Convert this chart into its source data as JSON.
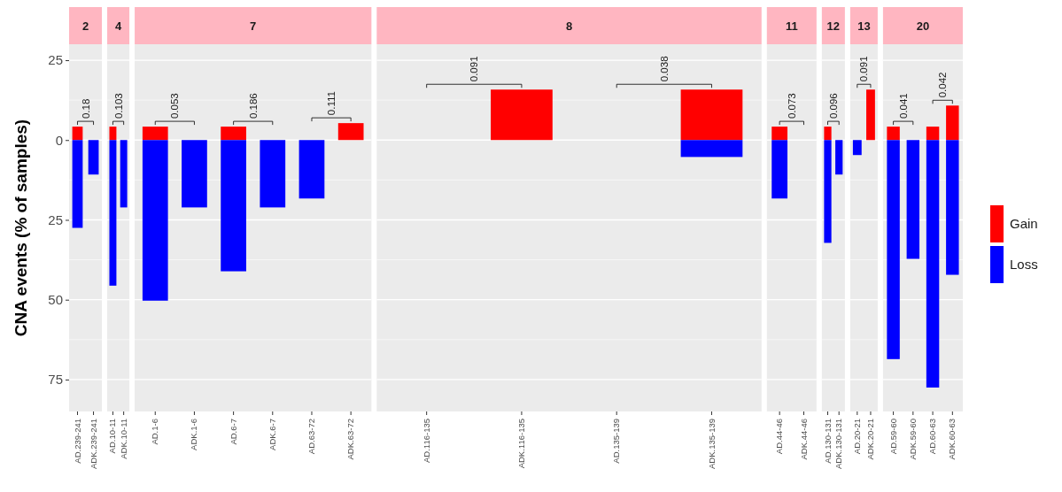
{
  "chart_data": [
    {
      "type": "bar",
      "stacked": true,
      "title": "2",
      "ylabel": "CNA events (% of samples)",
      "categories": [
        "AD.239-241",
        "ADK.239-241"
      ],
      "series": [
        {
          "color": "#ff0000",
          "values": [
            4.2,
            null
          ]
        },
        {
          "color": "#0000ff",
          "values": [
            -27.5,
            -10.8
          ]
        }
      ],
      "ylim": [
        -85,
        30
      ],
      "yticks": [
        {
          "value": -75,
          "label": "75"
        },
        {
          "value": -50,
          "label": "50"
        },
        {
          "value": -25,
          "label": "25"
        },
        0,
        25
      ],
      "grid": true,
      "annotations": [
        "0.18"
      ]
    },
    {
      "type": "bar",
      "stacked": true,
      "title": "4",
      "categories": [
        "AD.10-11",
        "ADK.10-11"
      ],
      "series": [
        {
          "color": "#ff0000",
          "values": [
            4.2,
            null
          ]
        },
        {
          "color": "#0000ff",
          "values": [
            -45.6,
            -21.1
          ]
        }
      ],
      "ylim": [
        -85,
        30
      ],
      "grid": true,
      "tick_labels": "x",
      "annotations": [
        "0.103"
      ]
    },
    {
      "type": "bar",
      "stacked": true,
      "title": "7",
      "categories": [
        "AD.1-6",
        "ADK.1-6",
        "AD.6-7",
        "ADK.6-7",
        "AD.63-72",
        "ADK.63-72"
      ],
      "series": [
        {
          "color": "#ff0000",
          "values": [
            4.2,
            null,
            4.2,
            null,
            null,
            5.3
          ]
        },
        {
          "color": "#0000ff",
          "values": [
            -50.3,
            -21.1,
            -41.1,
            -21.1,
            -18.3,
            null
          ]
        }
      ],
      "ylim": [
        -85,
        30
      ],
      "grid": true,
      "tick_labels": "x",
      "annotations": [
        "0.053",
        "0.186",
        "0.111"
      ]
    },
    {
      "type": "bar",
      "stacked": true,
      "title": "8",
      "categories": [
        "AD.116-135",
        "ADK.116-135",
        "AD.135-139",
        "ADK.135-139"
      ],
      "series": [
        {
          "color": "#ff0000",
          "values": [
            null,
            15.8,
            null,
            15.8
          ]
        },
        {
          "color": "#0000ff",
          "values": [
            null,
            null,
            null,
            -5.3
          ]
        }
      ],
      "ylim": [
        -85,
        30
      ],
      "grid": true,
      "tick_labels": "x",
      "annotations": [
        "0.091",
        "0.038"
      ]
    },
    {
      "type": "bar",
      "stacked": true,
      "title": "11",
      "categories": [
        "AD.44-46",
        "ADK.44-46"
      ],
      "series": [
        {
          "color": "#ff0000",
          "values": [
            4.2,
            null
          ]
        },
        {
          "color": "#0000ff",
          "values": [
            -18.3,
            null
          ]
        }
      ],
      "ylim": [
        -85,
        30
      ],
      "grid": true,
      "tick_labels": "x",
      "annotations": [
        "0.073"
      ]
    },
    {
      "type": "bar",
      "stacked": true,
      "title": "12",
      "categories": [
        "AD.130-131",
        "ADK.130-131"
      ],
      "series": [
        {
          "color": "#ff0000",
          "values": [
            4.2,
            null
          ]
        },
        {
          "color": "#0000ff",
          "values": [
            -32.2,
            -10.8
          ]
        }
      ],
      "ylim": [
        -85,
        30
      ],
      "grid": true,
      "tick_labels": "x",
      "annotations": [
        "0.096"
      ]
    },
    {
      "type": "bar",
      "stacked": true,
      "title": "13",
      "categories": [
        "AD.20-21",
        "ADK.20-21"
      ],
      "series": [
        {
          "color": "#ff0000",
          "values": [
            null,
            15.8
          ]
        },
        {
          "color": "#0000ff",
          "values": [
            -4.7,
            null
          ]
        }
      ],
      "ylim": [
        -85,
        30
      ],
      "grid": true,
      "tick_labels": "x",
      "annotations": [
        "0.091"
      ]
    },
    {
      "type": "bar",
      "stacked": true,
      "title": "20",
      "categories": [
        "AD.59-60",
        "ADK.59-60",
        "AD.60-63",
        "ADK.60-63"
      ],
      "series": [
        {
          "name": "Gain",
          "color": "#ff0000",
          "values": [
            4.2,
            null,
            4.2,
            10.8
          ]
        },
        {
          "name": "Loss",
          "color": "#0000ff",
          "values": [
            -68.6,
            -37.2,
            -77.5,
            -42.2
          ]
        }
      ],
      "ylim": [
        -85,
        30
      ],
      "grid": true,
      "legend": "right",
      "tick_labels": "x",
      "annotations": [
        "0.041",
        "0.042"
      ]
    }
  ]
}
